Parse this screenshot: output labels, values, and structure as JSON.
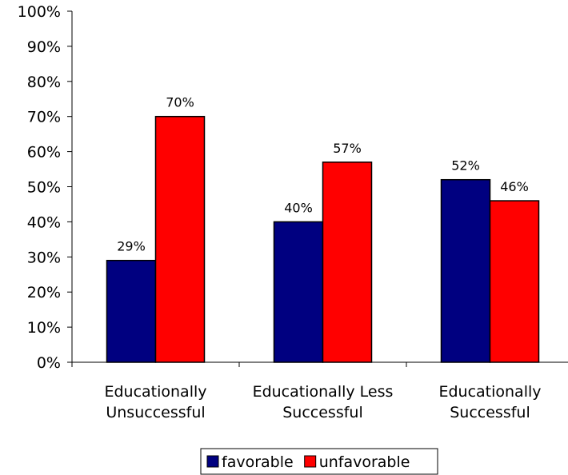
{
  "chart_data": {
    "type": "bar",
    "categories": [
      [
        "Educationally",
        "Unsuccessful"
      ],
      [
        "Educationally Less",
        "Successful"
      ],
      [
        "Educationally",
        "Successful"
      ]
    ],
    "series": [
      {
        "name": "favorable",
        "color": "#000080",
        "values": [
          29,
          40,
          52
        ],
        "labels": [
          "29%",
          "40%",
          "52%"
        ]
      },
      {
        "name": "unfavorable",
        "color": "#ff0000",
        "values": [
          70,
          57,
          46
        ],
        "labels": [
          "70%",
          "57%",
          "46%"
        ]
      }
    ],
    "ylim": [
      0,
      100
    ],
    "yticks": [
      "0%",
      "10%",
      "20%",
      "30%",
      "40%",
      "50%",
      "60%",
      "70%",
      "80%",
      "90%",
      "100%"
    ],
    "grid": false,
    "legend_position": "bottom",
    "title": "",
    "xlabel": "",
    "ylabel": ""
  }
}
